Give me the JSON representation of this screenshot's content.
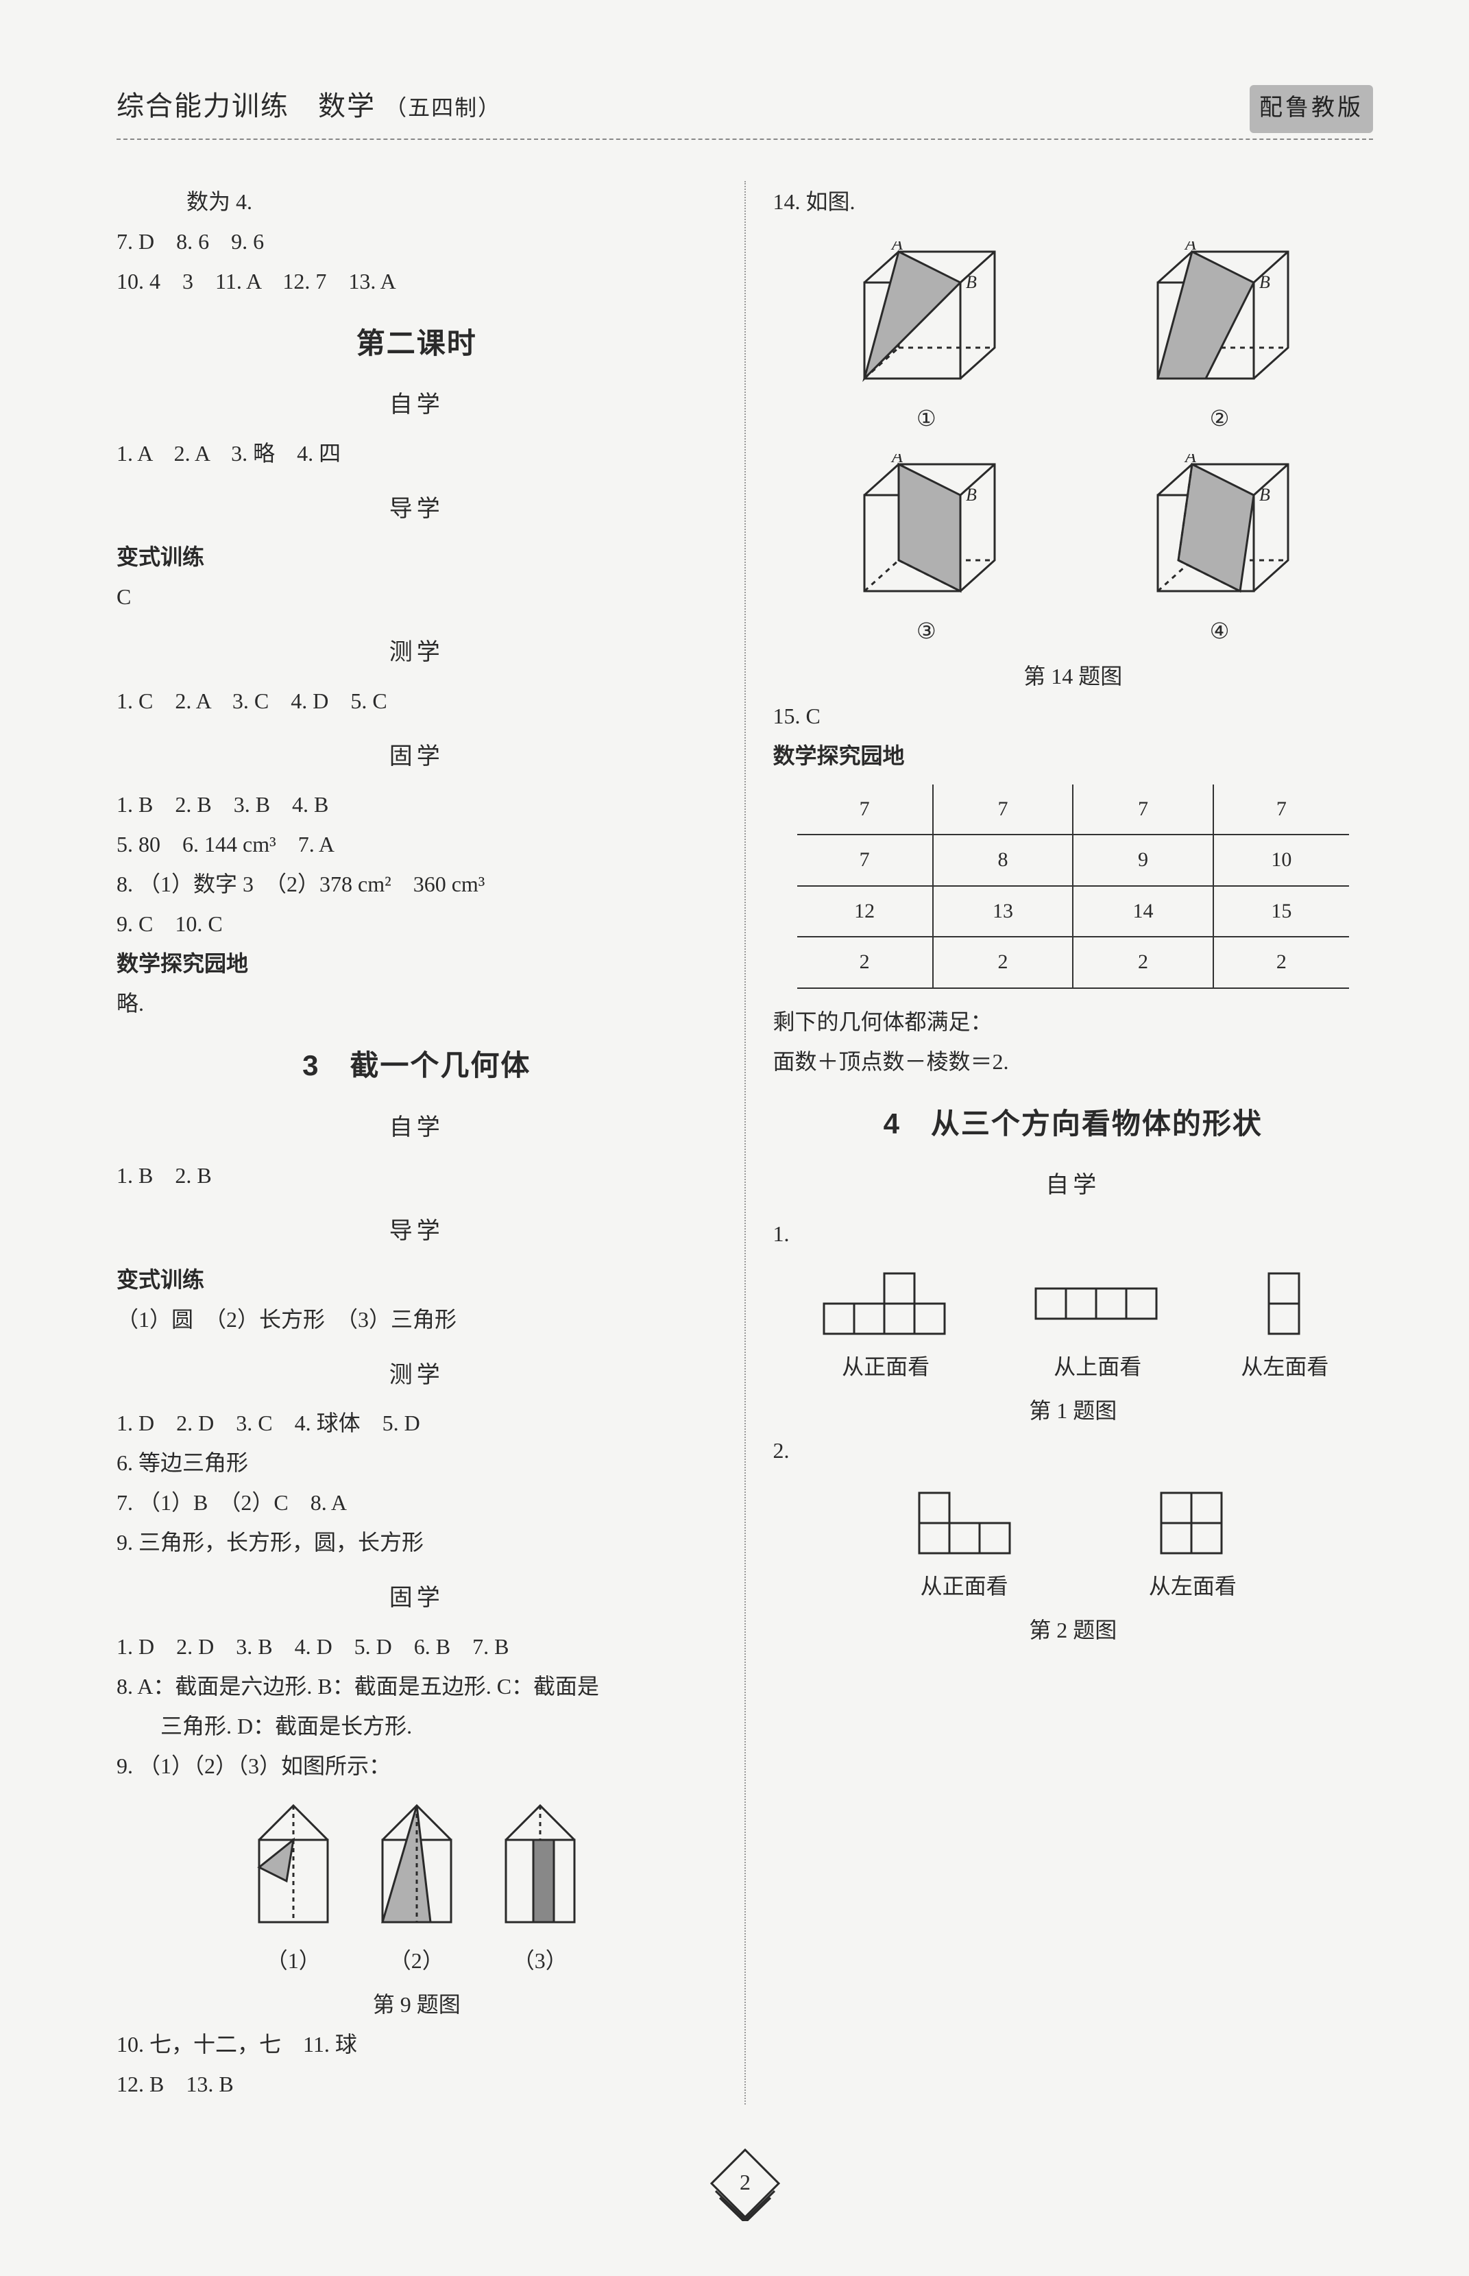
{
  "header": {
    "title_main": "综合能力训练　数学",
    "title_sub": "（五四制）",
    "badge": "配鲁教版"
  },
  "left": {
    "pre": {
      "l1": "　　数为 4.",
      "l2": "7. D　8. 6　9. 6",
      "l3": "10. 4　3　11. A　12. 7　13. A"
    },
    "lesson2_title": "第二课时",
    "zixue": "自学",
    "zixue_l1": "1. A　2. A　3. 略　4. 四",
    "daoxue": "导学",
    "bianshi": "变式训练",
    "bianshi_ans": "C",
    "cexue": "测学",
    "cexue_l1": "1. C　2. A　3. C　4. D　5. C",
    "guxue": "固学",
    "guxue_l1": "1. B　2. B　3. B　4. B",
    "guxue_l2": "5. 80　6. 144 cm³　7. A",
    "guxue_l3": "8. （1）数字 3　（2）378 cm²　360 cm³",
    "guxue_l4": "9. C　10. C",
    "yuan": "数学探究园地",
    "yuan_ans": "略.",
    "sec3_title": "3　截一个几何体",
    "s3_zixue_l1": "1. B　2. B",
    "s3_bianshi_l1": "（1）圆　（2）长方形　（3）三角形",
    "s3_cexue_l1": "1. D　2. D　3. C　4. 球体　5. D",
    "s3_cexue_l2": "6. 等边三角形",
    "s3_cexue_l3": "7. （1）B　（2）C　8. A",
    "s3_cexue_l4": "9. 三角形，长方形，圆，长方形",
    "s3_guxue_l1": "1. D　2. D　3. B　4. D　5. D　6. B　7. B",
    "s3_guxue_l2": "8. A：截面是六边形. B：截面是五边形. C：截面是",
    "s3_guxue_l2b": "　　三角形. D：截面是长方形.",
    "s3_guxue_l3": "9. （1）（2）（3）如图所示：",
    "fig9_labels": {
      "a": "（1）",
      "b": "（2）",
      "c": "（3）"
    },
    "fig9_caption": "第 9 题图",
    "s3_guxue_l4": "10. 七，十二，七　11. 球",
    "s3_guxue_l5": "12. B　13. B"
  },
  "right": {
    "l14": "14. 如图.",
    "cube_labels": {
      "a": "①",
      "b": "②",
      "c": "③",
      "d": "④"
    },
    "fig14_caption": "第 14 题图",
    "l15": "15. C",
    "yuan": "数学探究园地",
    "table": {
      "rows": [
        [
          "7",
          "7",
          "7",
          "7"
        ],
        [
          "7",
          "8",
          "9",
          "10"
        ],
        [
          "12",
          "13",
          "14",
          "15"
        ],
        [
          "2",
          "2",
          "2",
          "2"
        ]
      ]
    },
    "after_table_l1": "剩下的几何体都满足：",
    "after_table_l2": "面数＋顶点数－棱数＝2.",
    "sec4_title": "4　从三个方向看物体的形状",
    "zixue": "自学",
    "q1": "1.",
    "q1_labels": {
      "a": "从正面看",
      "b": "从上面看",
      "c": "从左面看"
    },
    "q1_caption": "第 1 题图",
    "q2": "2.",
    "q2_labels": {
      "a": "从正面看",
      "b": "从左面看"
    },
    "q2_caption": "第 2 题图"
  },
  "page_number": "2",
  "colors": {
    "stroke": "#2a2a2a",
    "fill_grey": "#b0b0b0",
    "fill_dark": "#888888",
    "bg": "#f5f5f3"
  },
  "cell_size": 44
}
